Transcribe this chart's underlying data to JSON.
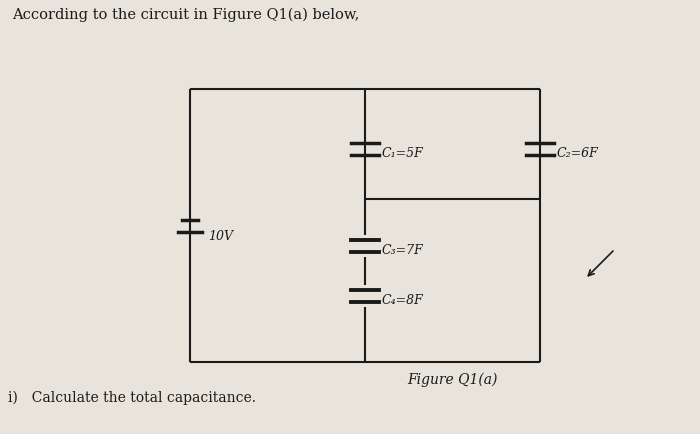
{
  "title": "According to the circuit in Figure Q1(a) below,",
  "figure_caption": "Figure Q1(a)",
  "question": "i) Calculate the total capacitance.",
  "bg_color": "#e8e4dc",
  "line_color": "#1a1a1a",
  "text_color": "#1a1a1a",
  "red_color": "#cc2200",
  "labels": {
    "voltage": "10V",
    "C1": "C₁=5F",
    "C2": "C₂=6F",
    "C3": "C₃=7F",
    "C4": "C₄=8F"
  }
}
